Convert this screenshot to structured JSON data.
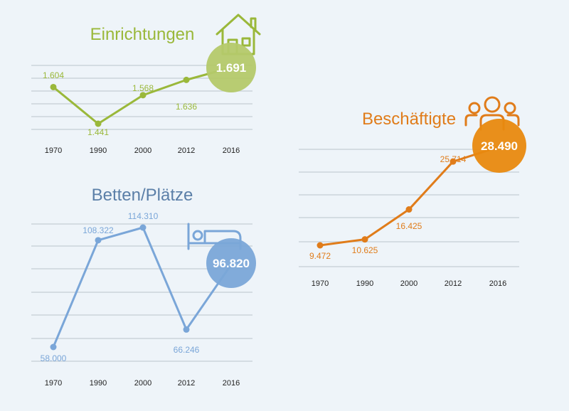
{
  "chart_data": [
    {
      "type": "line",
      "title": "Einrichtungen",
      "color": "#9ab83a",
      "bubble_color": "#b4c96a",
      "icon": "house-icon",
      "categories": [
        "1970",
        "1990",
        "2000",
        "2012",
        "2016"
      ],
      "values": [
        1604,
        1441,
        1568,
        1636,
        1691
      ],
      "labels": [
        "1.604",
        "1.441",
        "1.568",
        "1.636",
        "1.691"
      ],
      "highlight": "1.691"
    },
    {
      "type": "line",
      "title": "Betten/Plätze",
      "color": "#7aa6d8",
      "title_color": "#5b7fa8",
      "bubble_color": "#7aa6d8",
      "icon": "bed-icon",
      "categories": [
        "1970",
        "1990",
        "2000",
        "2012",
        "2016"
      ],
      "values": [
        58000,
        108322,
        114310,
        66246,
        96820
      ],
      "labels": [
        "58.000",
        "108.322",
        "114.310",
        "66.246",
        "96.820"
      ],
      "highlight": "96.820"
    },
    {
      "type": "line",
      "title": "Beschäftigte",
      "color": "#e07c1a",
      "bubble_color": "#e8890f",
      "icon": "people-icon",
      "categories": [
        "1970",
        "1990",
        "2000",
        "2012",
        "2016"
      ],
      "values": [
        9472,
        10625,
        16425,
        25714,
        28490
      ],
      "labels": [
        "9.472",
        "10.625",
        "16.425",
        "25.714",
        "28.490"
      ],
      "highlight": "28.490"
    }
  ]
}
